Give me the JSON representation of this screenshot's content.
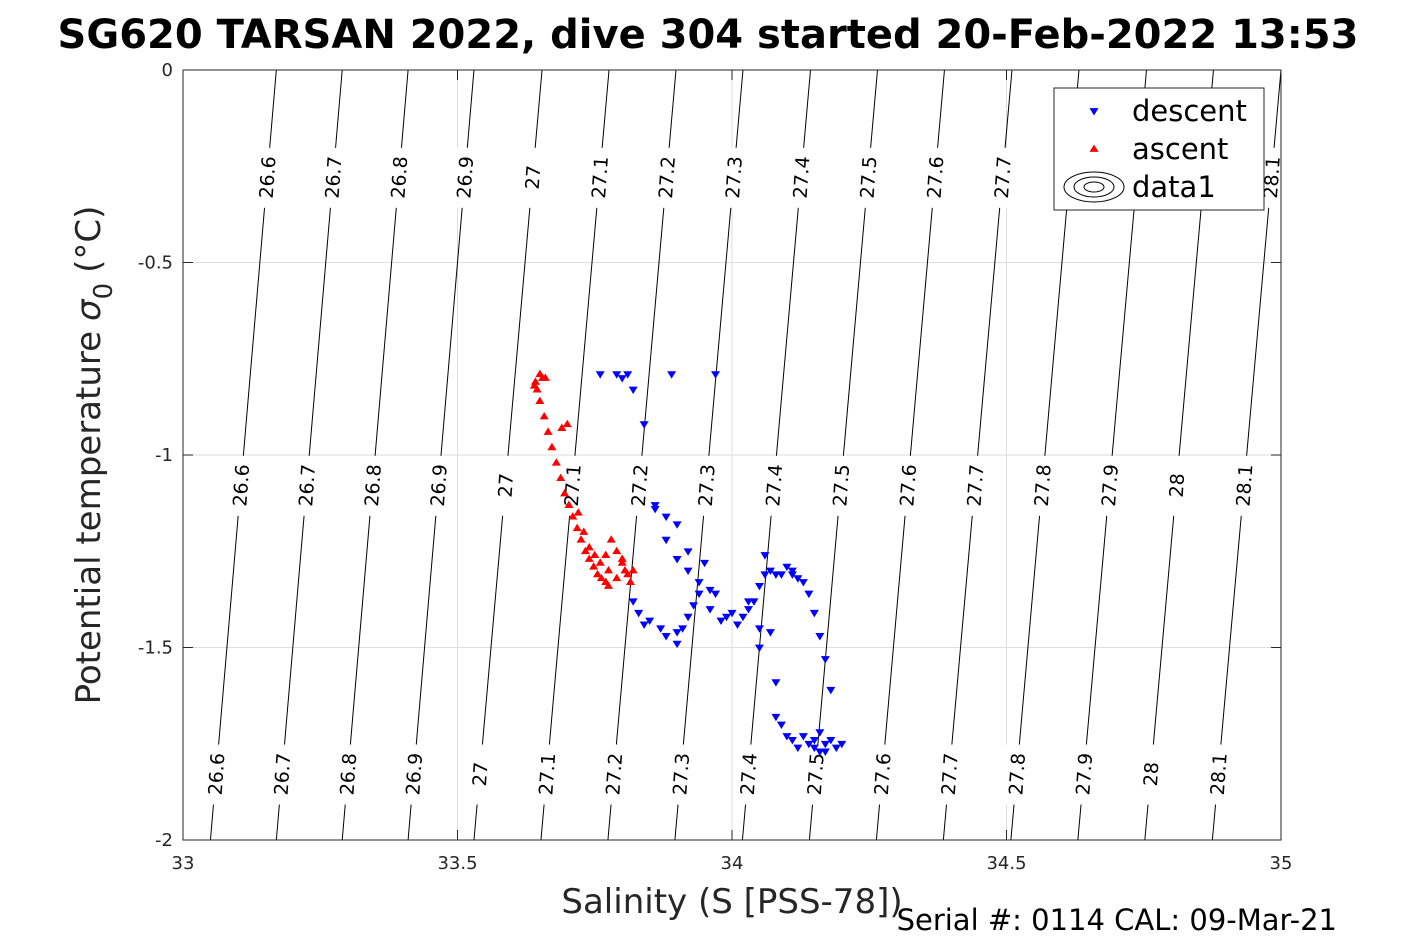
{
  "chart_data": {
    "type": "scatter",
    "title": "SG620 TARSAN 2022, dive 304 started 20-Feb-2022 13:53",
    "xlabel": "Salinity (S [PSS-78])",
    "ylabel_main": "Potential temperature",
    "ylabel_sym": "σ",
    "ylabel_sub": "0",
    "ylabel_unit": "(°C)",
    "footer": "Serial #: 0114  CAL: 09-Mar-21",
    "xlim": [
      33,
      35
    ],
    "ylim": [
      -2,
      0
    ],
    "y_reversed": true,
    "grid": true,
    "x_ticks": [
      33,
      33.5,
      34,
      34.5,
      35
    ],
    "x_tick_labels": [
      "33",
      "33.5",
      "34",
      "34.5",
      "35"
    ],
    "y_ticks": [
      0,
      -0.5,
      -1,
      -1.5,
      -2
    ],
    "y_tick_labels": [
      "0",
      "-0.5",
      "-1",
      "-1.5",
      "-2"
    ],
    "legend_position": "top-right",
    "legend": [
      {
        "label": "descent",
        "marker": "triangle-down",
        "color": "#0000ff"
      },
      {
        "label": "ascent",
        "marker": "triangle-up",
        "color": "#ff0000"
      },
      {
        "label": "data1",
        "marker": "contour-ellipses",
        "color": "#000000"
      }
    ],
    "contours": {
      "levels": [
        26.6,
        26.7,
        26.8,
        26.9,
        27,
        27.1,
        27.2,
        27.3,
        27.4,
        27.5,
        27.6,
        27.7,
        27.8,
        27.9,
        28,
        28.1
      ],
      "level_labels": [
        "26.6",
        "26.7",
        "26.8",
        "26.9",
        "27",
        "27.1",
        "27.2",
        "27.3",
        "27.4",
        "27.5",
        "27.6",
        "27.7",
        "27.8",
        "27.9",
        "28",
        "28.1"
      ],
      "salinity_at_top": [
        33.17,
        33.29,
        33.41,
        33.53,
        33.654,
        33.776,
        33.898,
        34.02,
        34.143,
        34.265,
        34.387,
        34.51,
        34.632,
        34.755,
        34.877,
        35.0
      ],
      "salinity_at_bottom": [
        33.05,
        33.17,
        33.29,
        33.41,
        33.53,
        33.652,
        33.774,
        33.896,
        34.019,
        34.141,
        34.263,
        34.385,
        34.508,
        34.63,
        34.752,
        34.875
      ],
      "label_rows_temperature": [
        -0.28,
        -1.08,
        -1.83
      ]
    },
    "series": [
      {
        "name": "descent",
        "color": "#0000ff",
        "marker": "triangle-down",
        "x": [
          33.76,
          33.79,
          33.8,
          33.81,
          33.82,
          33.89,
          33.97,
          33.83,
          33.84,
          33.85,
          33.87,
          33.9,
          33.9,
          33.88,
          33.91,
          33.92,
          33.93,
          33.96,
          33.94,
          33.86,
          33.88,
          33.9,
          33.92,
          33.95,
          33.97,
          33.99,
          34.01,
          34.03,
          34.04,
          34.05,
          34.06,
          34.07,
          34.08,
          34.09,
          34.11,
          34.13,
          34.14,
          34.15,
          34.16,
          34.17,
          34.18,
          34.16,
          34.12,
          34.11,
          34.1,
          34.09,
          34.08,
          34.05,
          34.03,
          34.02,
          34.0,
          33.98,
          33.96,
          33.94,
          33.92,
          33.9,
          33.88,
          33.86,
          33.84,
          33.82,
          34.06,
          34.1,
          34.11,
          34.12,
          34.14,
          34.15,
          34.16,
          34.17,
          34.18,
          34.19,
          34.2,
          34.17,
          34.15,
          34.13,
          34.05,
          34.07,
          34.08
        ],
        "y": [
          -0.79,
          -0.79,
          -0.8,
          -0.79,
          -0.83,
          -0.79,
          -0.79,
          -1.41,
          -1.44,
          -1.43,
          -1.45,
          -1.46,
          -1.49,
          -1.47,
          -1.45,
          -1.42,
          -1.39,
          -1.35,
          -1.33,
          -1.14,
          -1.16,
          -1.18,
          -1.25,
          -1.28,
          -1.36,
          -1.42,
          -1.44,
          -1.4,
          -1.38,
          -1.34,
          -1.31,
          -1.3,
          -1.31,
          -1.31,
          -1.31,
          -1.33,
          -1.36,
          -1.41,
          -1.47,
          -1.53,
          -1.61,
          -1.72,
          -1.76,
          -1.74,
          -1.73,
          -1.7,
          -1.68,
          -1.45,
          -1.38,
          -1.42,
          -1.41,
          -1.43,
          -1.4,
          -1.36,
          -1.3,
          -1.27,
          -1.22,
          -1.13,
          -0.92,
          -1.38,
          -1.26,
          -1.29,
          -1.3,
          -1.32,
          -1.75,
          -1.76,
          -1.77,
          -1.75,
          -1.74,
          -1.76,
          -1.75,
          -1.77,
          -1.74,
          -1.73,
          -1.5,
          -1.46,
          -1.59
        ]
      },
      {
        "name": "ascent",
        "color": "#ff0000",
        "marker": "triangle-up",
        "x": [
          33.645,
          33.65,
          33.658,
          33.665,
          33.672,
          33.68,
          33.688,
          33.695,
          33.703,
          33.71,
          33.718,
          33.725,
          33.733,
          33.74,
          33.748,
          33.755,
          33.762,
          33.77,
          33.775,
          33.655,
          33.66,
          33.65,
          33.642,
          33.64,
          33.69,
          33.7,
          33.72,
          33.73,
          33.74,
          33.75,
          33.78,
          33.79,
          33.8,
          33.805,
          33.81,
          33.815,
          33.82,
          33.8,
          33.79,
          33.775,
          33.76,
          33.77
        ],
        "y": [
          -0.83,
          -0.86,
          -0.9,
          -0.94,
          -0.98,
          -1.02,
          -1.06,
          -1.1,
          -1.13,
          -1.16,
          -1.19,
          -1.22,
          -1.25,
          -1.27,
          -1.29,
          -1.31,
          -1.32,
          -1.33,
          -1.34,
          -0.8,
          -0.8,
          -0.79,
          -0.81,
          -0.82,
          -0.93,
          -0.92,
          -1.15,
          -1.2,
          -1.24,
          -1.26,
          -1.22,
          -1.25,
          -1.28,
          -1.3,
          -1.31,
          -1.33,
          -1.3,
          -1.27,
          -1.32,
          -1.3,
          -1.28,
          -1.26
        ]
      }
    ]
  }
}
